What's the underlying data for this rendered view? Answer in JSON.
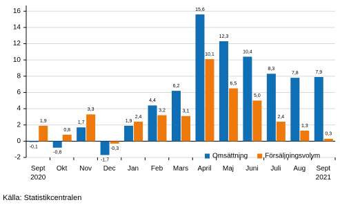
{
  "chart_data": {
    "type": "bar",
    "categories": [
      "Sept\n2020",
      "Okt",
      "Nov",
      "Dec",
      "Jan",
      "Feb",
      "Mars",
      "April",
      "Maj",
      "Juni",
      "Juli",
      "Aug",
      "Sept\n2021"
    ],
    "series": [
      {
        "name": "Omsättning",
        "color": "#0f6eb4",
        "values": [
          -0.1,
          -0.8,
          1.7,
          -1.7,
          1.9,
          4.4,
          6.2,
          15.6,
          12.3,
          10.4,
          8.3,
          7.8,
          7.9
        ],
        "value_labels": [
          "-0,1",
          "-0,8",
          "1,7",
          "-1,7",
          "1,9",
          "4,4",
          "6,2",
          "15,6",
          "12,3",
          "10,4",
          "8,3",
          "7,8",
          "7,9"
        ]
      },
      {
        "name": "Försäljningsvolym",
        "color": "#ee7a0e",
        "values": [
          1.9,
          0.8,
          3.3,
          -0.3,
          2.4,
          3.2,
          3.1,
          10.1,
          6.5,
          5.0,
          2.4,
          1.3,
          0.3
        ],
        "value_labels": [
          "1,9",
          "0,8",
          "3,3",
          "-0,3",
          "2,4",
          "3,2",
          "3,1",
          "10,1",
          "6,5",
          "5,0",
          "2,4",
          "1,3",
          "0,3"
        ]
      }
    ],
    "ylim": [
      -2,
      16.7
    ],
    "yticks": [
      -2,
      0,
      2,
      4,
      6,
      8,
      10,
      12,
      14,
      16
    ],
    "grid": true,
    "legend": "lower right",
    "source": "Källa: Statistikcentralen"
  }
}
